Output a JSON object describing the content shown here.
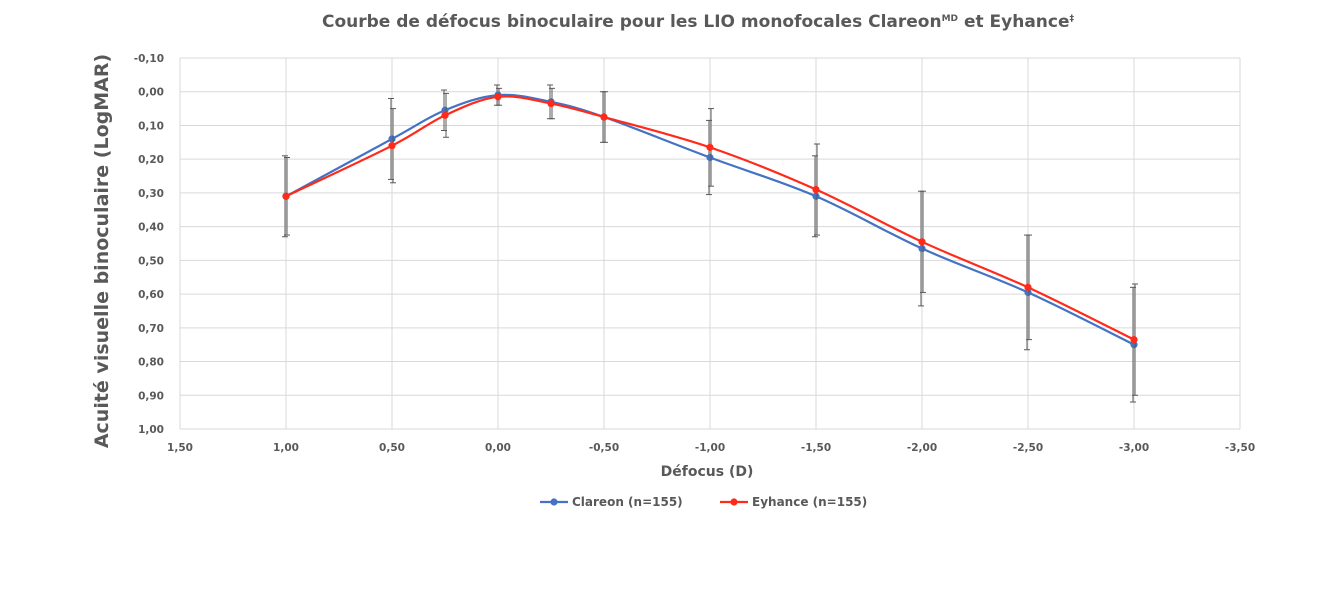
{
  "chart_data": {
    "type": "line",
    "title": "Courbe de défocus binoculaire pour les LIO monofocales Clareon",
    "title_sup1": "MD",
    "title_mid": " et Eyhance",
    "title_sup2": "‡",
    "xlabel": "Défocus (D)",
    "ylabel": "Acuité visuelle binoculaire (LogMAR)",
    "xlim": [
      1.5,
      -3.5
    ],
    "ylim": [
      -0.1,
      1.0
    ],
    "y_inverted": true,
    "grid": true,
    "legend_position": "bottom",
    "x_ticks": [
      1.5,
      1.0,
      0.5,
      0.0,
      -0.5,
      -1.0,
      -1.5,
      -2.0,
      -2.5,
      -3.0,
      -3.5
    ],
    "x_tick_labels": [
      "1,50",
      "1,00",
      "0,50",
      "0,00",
      "-0,50",
      "-1,00",
      "-1,50",
      "-2,00",
      "-2,50",
      "-3,00",
      "-3,50"
    ],
    "y_ticks": [
      -0.1,
      0.0,
      0.1,
      0.2,
      0.3,
      0.4,
      0.5,
      0.6,
      0.7,
      0.8,
      0.9,
      1.0
    ],
    "y_tick_labels": [
      "-0,10",
      "0,00",
      "0,10",
      "0,20",
      "0,30",
      "0,40",
      "0,50",
      "0,60",
      "0,70",
      "0,80",
      "0,90",
      "1,00"
    ],
    "x": [
      1.0,
      0.5,
      0.25,
      0.0,
      -0.25,
      -0.5,
      -1.0,
      -1.5,
      -2.0,
      -2.5,
      -3.0
    ],
    "series": [
      {
        "name": "Clareon (n=155)",
        "color": "#4472c4",
        "values": [
          0.31,
          0.14,
          0.055,
          0.01,
          0.03,
          0.075,
          0.195,
          0.31,
          0.465,
          0.595,
          0.75
        ],
        "error": [
          0.12,
          0.12,
          0.06,
          0.03,
          0.05,
          0.075,
          0.11,
          0.12,
          0.17,
          0.17,
          0.17
        ]
      },
      {
        "name": "Eyhance (n=155)",
        "color": "#ff2a1a",
        "values": [
          0.31,
          0.16,
          0.07,
          0.015,
          0.035,
          0.075,
          0.165,
          0.29,
          0.445,
          0.58,
          0.735
        ],
        "error": [
          0.115,
          0.11,
          0.065,
          0.025,
          0.045,
          0.075,
          0.115,
          0.135,
          0.15,
          0.155,
          0.165
        ]
      }
    ]
  }
}
